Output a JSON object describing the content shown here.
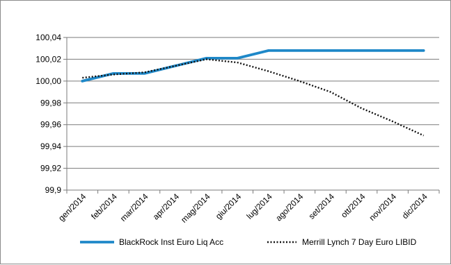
{
  "chart_data": {
    "type": "line",
    "title": "",
    "xlabel": "",
    "ylabel": "",
    "categories": [
      "gen/2014",
      "feb/2014",
      "mar/2014",
      "apr/2014",
      "mag/2014",
      "giu/2014",
      "lug/2014",
      "ago/2014",
      "set/2014",
      "ott/2014",
      "nov/2014",
      "dic/2014"
    ],
    "y_ticks": [
      "99,9",
      "99,92",
      "99,94",
      "99,96",
      "99,98",
      "100,00",
      "100,02",
      "100,04"
    ],
    "ylim": [
      99.9,
      100.04
    ],
    "grid": true,
    "legend_position": "bottom",
    "series": [
      {
        "name": "BlackRock Inst Euro Liq Acc",
        "color": "#1f88c8",
        "style": "solid",
        "values": [
          100.0,
          100.007,
          100.007,
          100.014,
          100.021,
          100.021,
          100.028,
          100.028,
          100.028,
          100.028,
          100.028,
          100.028
        ]
      },
      {
        "name": "Merrill Lynch 7 Day Euro LIBID",
        "color": "#111111",
        "style": "dotted",
        "values": [
          100.003,
          100.006,
          100.008,
          100.014,
          100.02,
          100.017,
          100.009,
          100.0,
          99.99,
          99.975,
          99.963,
          99.95
        ]
      }
    ]
  }
}
